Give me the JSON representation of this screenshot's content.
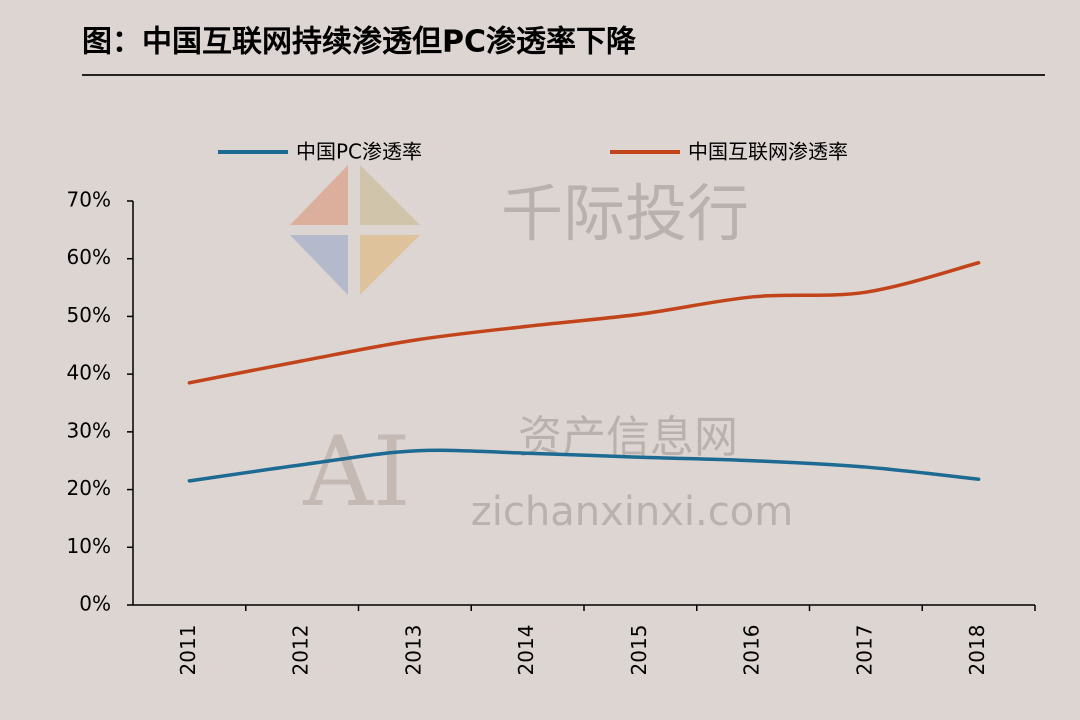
{
  "chart_data": {
    "type": "line",
    "title": "图：中国互联网持续渗透但PC渗透率下降",
    "categories": [
      "2011",
      "2012",
      "2013",
      "2014",
      "2015",
      "2016",
      "2017",
      "2018"
    ],
    "series": [
      {
        "name": "中国PC渗透率",
        "color": "#1d6b93",
        "values": [
          21.5,
          24.3,
          26.7,
          26.3,
          25.6,
          25.0,
          23.9,
          21.8
        ]
      },
      {
        "name": "中国互联网渗透率",
        "color": "#c2441b",
        "values": [
          38.5,
          42.3,
          45.9,
          48.3,
          50.4,
          53.4,
          54.2,
          59.3
        ]
      }
    ],
    "ylim": [
      0,
      70
    ],
    "yticks": [
      {
        "value": 0,
        "label": "0%"
      },
      {
        "value": 10,
        "label": "10%"
      },
      {
        "value": 20,
        "label": "20%"
      },
      {
        "value": 30,
        "label": "30%"
      },
      {
        "value": 40,
        "label": "40%"
      },
      {
        "value": 50,
        "label": "50%"
      },
      {
        "value": 60,
        "label": "60%"
      },
      {
        "value": 70,
        "label": "70%"
      }
    ],
    "legend": "top",
    "watermarks": [
      "千际投行",
      "资产信息网",
      "zichanxinxi.com",
      "AI"
    ]
  }
}
